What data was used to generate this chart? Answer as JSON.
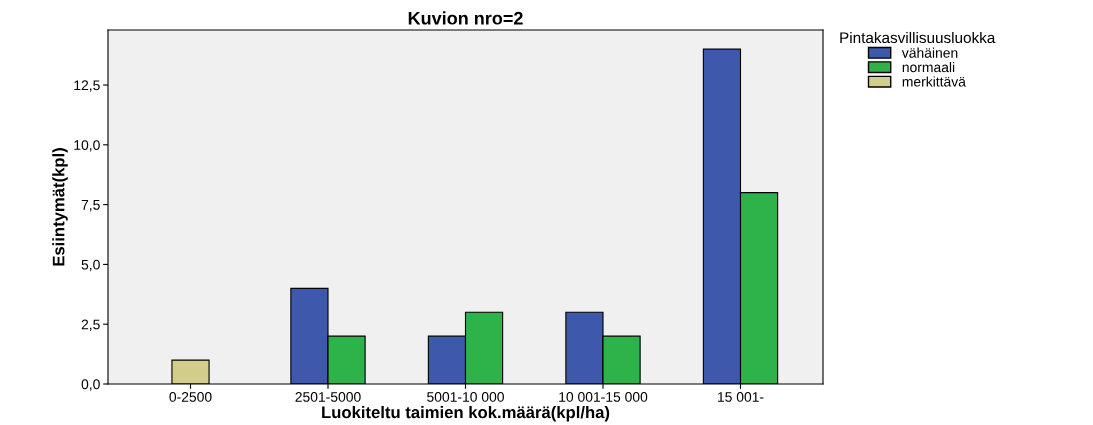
{
  "chart_data": {
    "type": "bar",
    "title": "Kuvion nro=2",
    "xlabel": "Luokiteltu taimien kok.määrä(kpl/ha)",
    "ylabel": "Esiintymät(kpl)",
    "legend_title": "Pintakasvillisuusluokka",
    "categories": [
      "0-2500",
      "2501-5000",
      "5001-10 000",
      "10 001-15 000",
      "15 001-"
    ],
    "series": [
      {
        "name": "vähäinen",
        "color": "#3e58ac",
        "values": [
          null,
          4,
          2,
          3,
          14
        ]
      },
      {
        "name": "normaali",
        "color": "#2db34a",
        "values": [
          null,
          2,
          3,
          2,
          8
        ]
      },
      {
        "name": "merkittävä",
        "color": "#d3cd8b",
        "values": [
          1,
          null,
          null,
          null,
          null
        ]
      }
    ],
    "ylim": [
      0,
      14.8
    ],
    "yticks": [
      {
        "value": 0,
        "label": "0,0"
      },
      {
        "value": 2.5,
        "label": "2,5"
      },
      {
        "value": 5,
        "label": "5,0"
      },
      {
        "value": 7.5,
        "label": "7,5"
      },
      {
        "value": 10,
        "label": "10,0"
      },
      {
        "value": 12.5,
        "label": "12,5"
      }
    ],
    "legend": "right",
    "grid": false
  }
}
